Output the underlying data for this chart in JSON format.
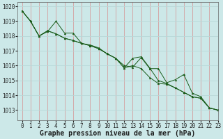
{
  "title": "Graphe pression niveau de la mer (hPa)",
  "background_color": "#cce8e8",
  "line_color": "#1a5c1a",
  "xlim": [
    -0.5,
    23
  ],
  "ylim": [
    1012.3,
    1020.3
  ],
  "yticks": [
    1013,
    1014,
    1015,
    1016,
    1017,
    1018,
    1019,
    1020
  ],
  "xticks": [
    0,
    1,
    2,
    3,
    4,
    5,
    6,
    7,
    8,
    9,
    10,
    11,
    12,
    13,
    14,
    15,
    16,
    17,
    18,
    19,
    20,
    21,
    22,
    23
  ],
  "series": [
    [
      1019.7,
      1019.0,
      1018.0,
      1018.3,
      1019.0,
      1018.2,
      1018.2,
      1017.5,
      1017.4,
      1017.2,
      1016.8,
      1016.5,
      1016.0,
      1015.9,
      1016.55,
      1015.8,
      1015.8,
      1014.85,
      1015.05,
      1015.4,
      1014.15,
      1013.9,
      1013.15,
      1013.0
    ],
    [
      1019.7,
      1019.0,
      1018.0,
      1018.35,
      1018.15,
      1017.85,
      1017.7,
      1017.5,
      1017.35,
      1017.15,
      1016.8,
      1016.5,
      1015.85,
      1016.5,
      1016.6,
      1015.85,
      1015.0,
      1014.8,
      1014.5,
      1014.2,
      1013.9,
      1013.8,
      1013.15,
      1013.0
    ],
    [
      1019.7,
      1019.0,
      1018.0,
      1018.35,
      1018.15,
      1017.85,
      1017.7,
      1017.5,
      1017.35,
      1017.15,
      1016.8,
      1016.5,
      1015.85,
      1016.0,
      1015.8,
      1015.2,
      1014.8,
      1014.75,
      1014.5,
      1014.2,
      1013.9,
      1013.8,
      1013.15,
      1013.0
    ]
  ],
  "vgrid_color": "#d4a0a0",
  "hgrid_color": "#b8d8d8",
  "tick_fontsize": 5.5,
  "xlabel_fontsize": 7
}
